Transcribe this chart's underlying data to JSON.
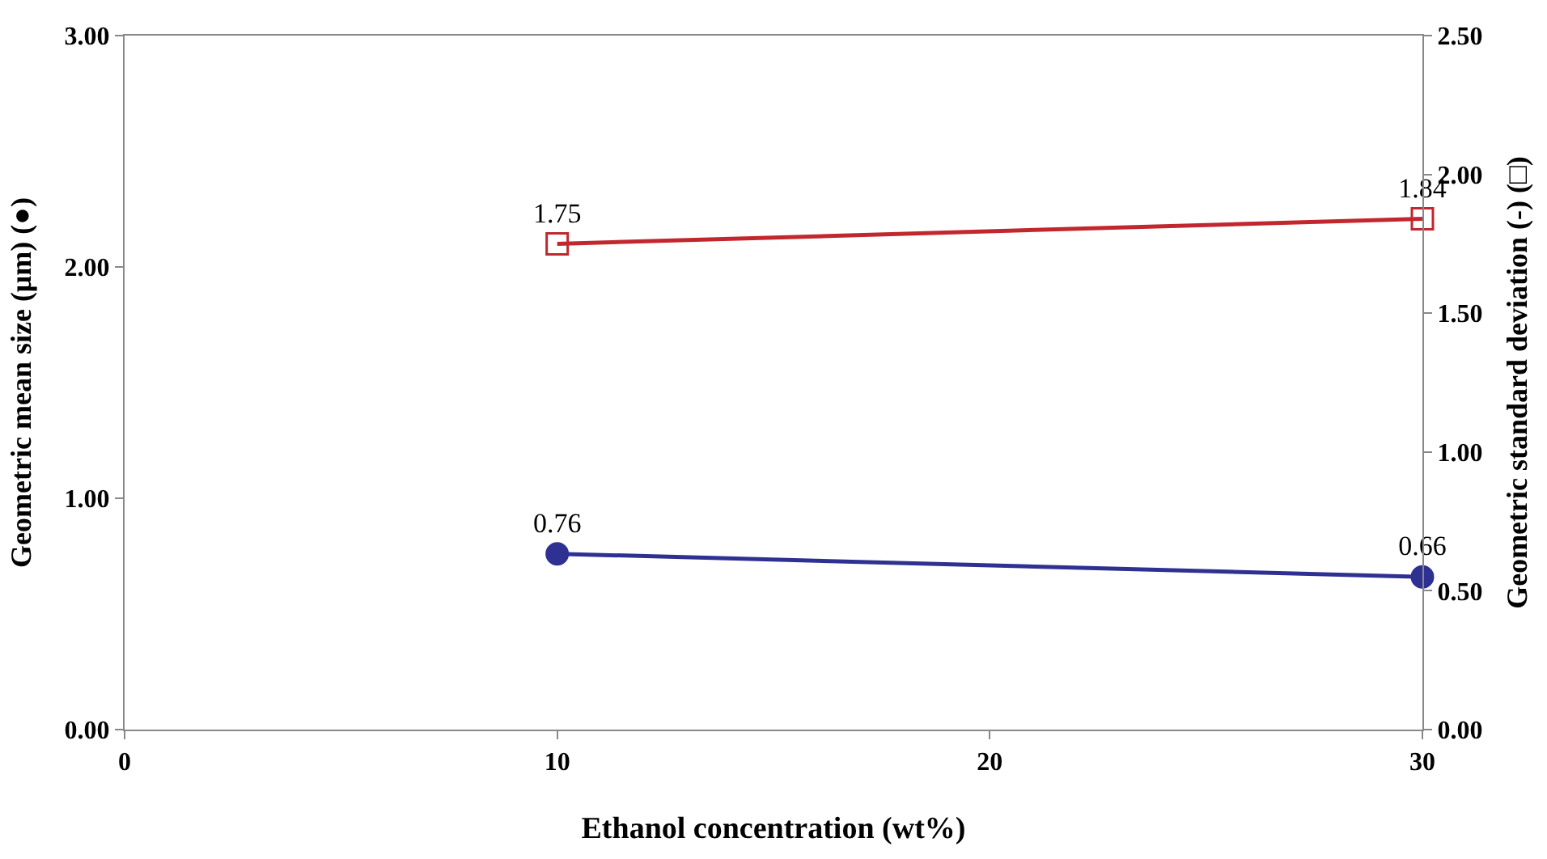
{
  "chart_data": {
    "type": "line",
    "xlabel": "Ethanol concentration (wt%)",
    "ylabel": "Geometric mean size (μm) (●)",
    "y2label": "Geometric standard deviation (-) (□)",
    "x": [
      10,
      30
    ],
    "series": [
      {
        "color": "#2e3192",
        "values": [
          0.76,
          0.66
        ],
        "marker": "circle"
      },
      {
        "color": "#c1272d",
        "values": [
          1.75,
          1.84
        ],
        "marker": "square",
        "axis": "y2"
      }
    ],
    "xlim": [
      0,
      30
    ],
    "xticks": [
      0,
      10,
      20,
      30
    ],
    "ylim": [
      0,
      3
    ],
    "yticks": [
      {
        "value": 0,
        "label": "0.00"
      },
      {
        "value": 1,
        "label": "1.00"
      },
      {
        "value": 2,
        "label": "2.00"
      },
      {
        "value": 3,
        "label": "3.00"
      }
    ],
    "y2lim": [
      0,
      2.5
    ],
    "y2ticks": [
      {
        "value": 0,
        "label": "0.00"
      },
      {
        "value": 0.5,
        "label": "0.50"
      },
      {
        "value": 1,
        "label": "1.00"
      },
      {
        "value": 1.5,
        "label": "1.50"
      },
      {
        "value": 2,
        "label": "2.00"
      },
      {
        "value": 2.5,
        "label": "2.50"
      }
    ],
    "data_labels": true,
    "grid": false,
    "legend": false,
    "line_style": "solid"
  }
}
